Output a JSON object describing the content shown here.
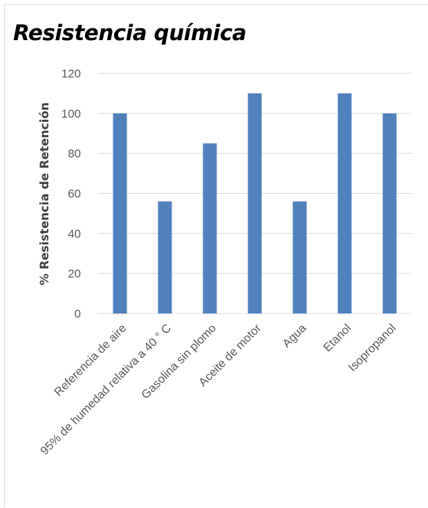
{
  "chart_data": {
    "type": "bar",
    "title": "Resistencia química",
    "ylabel": "% Resistencia de Retención",
    "xlabel": "",
    "categories": [
      "Referencia de aire",
      "95% de humedad relativa a 40 ° C",
      "Gasolina sin plomo",
      "Aceite de motor",
      "Agua",
      "Etanol",
      "Isopropanol"
    ],
    "values": [
      100,
      56,
      85,
      110,
      56,
      110,
      100
    ],
    "ylim": [
      0,
      120
    ],
    "yticks": [
      0,
      20,
      40,
      60,
      80,
      100,
      120
    ],
    "grid": true,
    "bar_color": "#4f81bd",
    "grid_color": "#d9d9d9"
  }
}
